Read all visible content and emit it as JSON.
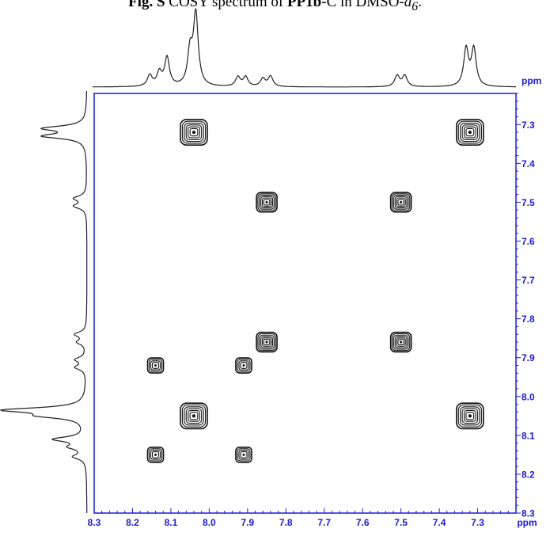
{
  "caption": {
    "bold_prefix": "Fig. S",
    "text1": "COSY spectrum of ",
    "compound": "PP1b",
    "text2": "-C in DMSO-",
    "solvent_sub": "d",
    "solvent_num": "6",
    "end": "."
  },
  "chart_data": {
    "type": "scatter",
    "title": "",
    "xlabel": "ppm",
    "ylabel": "ppm",
    "xlim": [
      8.3,
      7.2
    ],
    "ylim": [
      7.22,
      8.3
    ],
    "x_ticks": [
      "8.3",
      "8.2",
      "8.1",
      "8.0",
      "7.9",
      "7.8",
      "7.7",
      "7.6",
      "7.5",
      "7.4",
      "7.3"
    ],
    "y_ticks": [
      "7.3",
      "7.4",
      "7.5",
      "7.6",
      "7.7",
      "7.8",
      "7.9",
      "8.0",
      "8.1",
      "8.2",
      "8.3"
    ],
    "axis_color": "#1a1adb",
    "peaks": [
      {
        "x": 8.04,
        "y": 7.32,
        "size": "large"
      },
      {
        "x": 7.32,
        "y": 7.32,
        "size": "large"
      },
      {
        "x": 7.85,
        "y": 7.5,
        "size": "medium"
      },
      {
        "x": 7.5,
        "y": 7.5,
        "size": "medium"
      },
      {
        "x": 7.85,
        "y": 7.86,
        "size": "medium"
      },
      {
        "x": 7.5,
        "y": 7.86,
        "size": "medium"
      },
      {
        "x": 8.14,
        "y": 7.92,
        "size": "small"
      },
      {
        "x": 7.91,
        "y": 7.92,
        "size": "small"
      },
      {
        "x": 8.04,
        "y": 8.05,
        "size": "large"
      },
      {
        "x": 7.32,
        "y": 8.05,
        "size": "large"
      },
      {
        "x": 8.14,
        "y": 8.15,
        "size": "small"
      },
      {
        "x": 7.91,
        "y": 8.15,
        "size": "small"
      }
    ],
    "projection_peaks": [
      {
        "shift": 8.155,
        "height": 0.14
      },
      {
        "shift": 8.13,
        "height": 0.17
      },
      {
        "shift": 8.11,
        "height": 0.36
      },
      {
        "shift": 8.05,
        "height": 0.42
      },
      {
        "shift": 8.035,
        "height": 0.9
      },
      {
        "shift": 7.925,
        "height": 0.12
      },
      {
        "shift": 7.905,
        "height": 0.12
      },
      {
        "shift": 7.86,
        "height": 0.1
      },
      {
        "shift": 7.84,
        "height": 0.13
      },
      {
        "shift": 7.51,
        "height": 0.14
      },
      {
        "shift": 7.49,
        "height": 0.14
      },
      {
        "shift": 7.33,
        "height": 0.47
      },
      {
        "shift": 7.31,
        "height": 0.47
      }
    ]
  }
}
